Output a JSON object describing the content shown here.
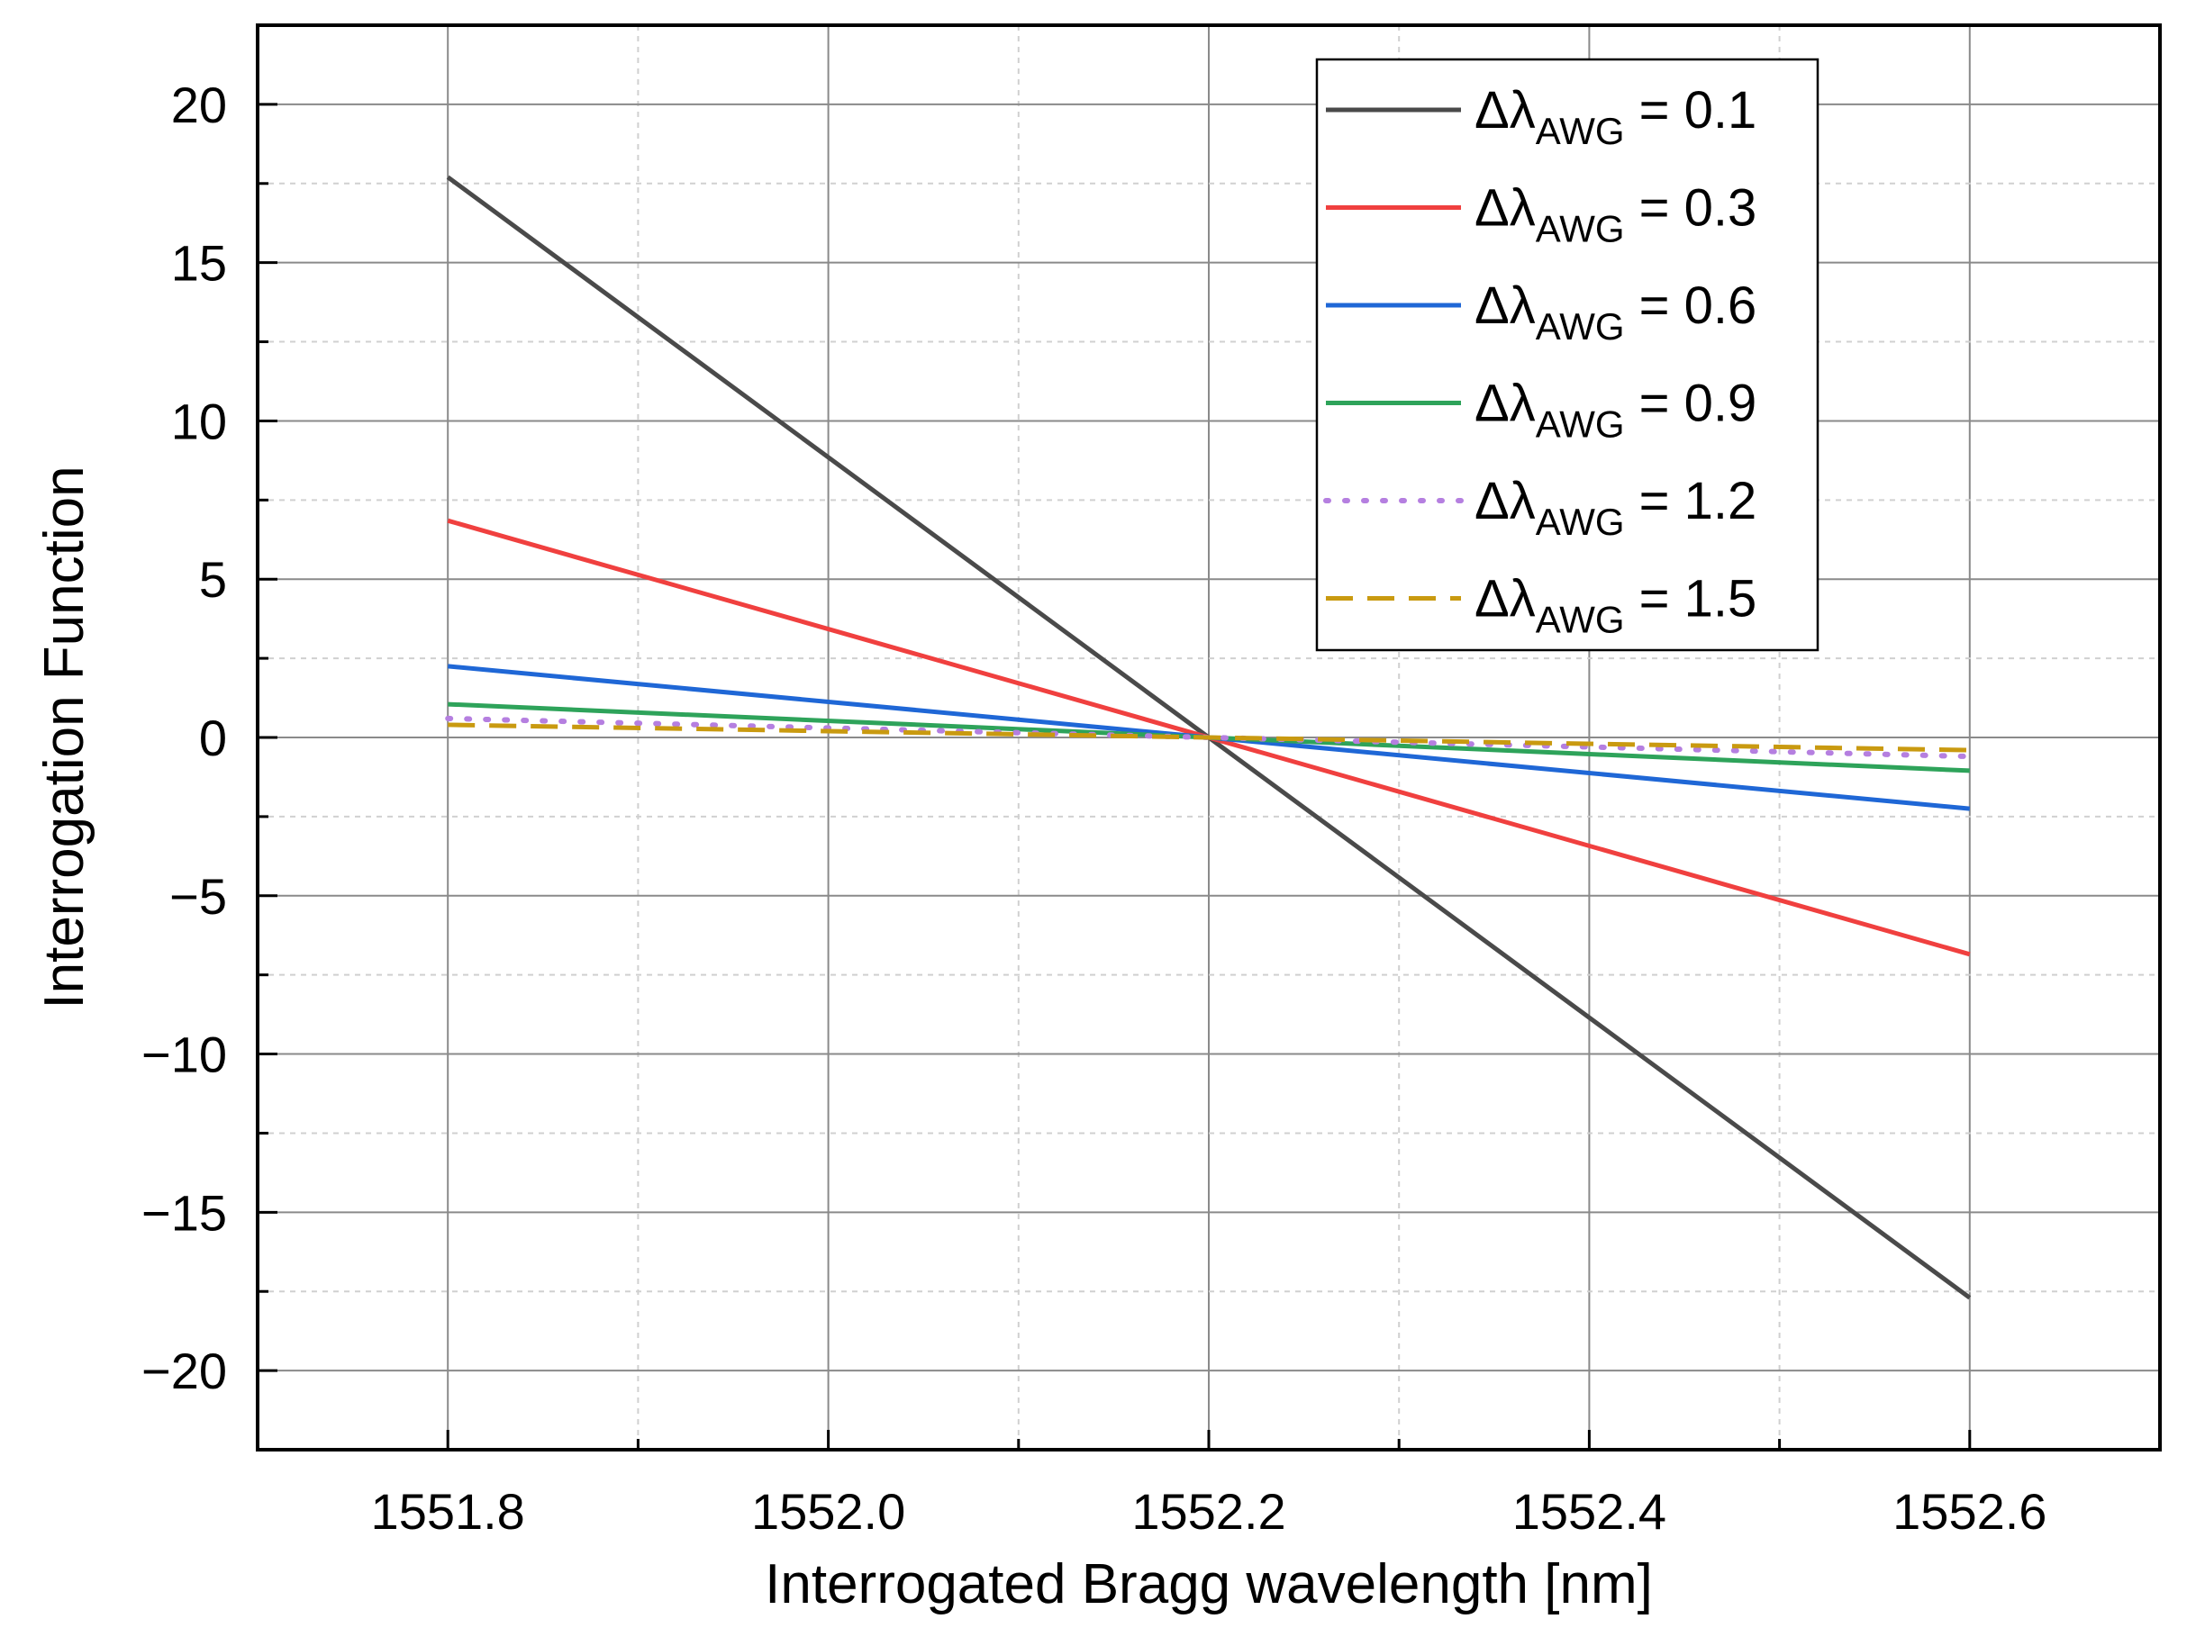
{
  "chart_data": {
    "type": "line",
    "title": "",
    "xlabel": "Interrogated Bragg wavelength [nm]",
    "ylabel": "Interrogation Function",
    "xlim": [
      1551.7,
      1552.7
    ],
    "ylim": [
      -22.5,
      22.5
    ],
    "xticks": [
      1551.8,
      1552.0,
      1552.2,
      1552.4,
      1552.6
    ],
    "xtick_labels": [
      "1551.8",
      "1552.0",
      "1552.2",
      "1552.4",
      "1552.6"
    ],
    "yticks": [
      -20,
      -15,
      -10,
      -5,
      0,
      5,
      10,
      15,
      20
    ],
    "ytick_labels": [
      "−20",
      "−15",
      "−10",
      "−5",
      "0",
      "5",
      "10",
      "15",
      "20"
    ],
    "grid": true,
    "legend_position": "top-right",
    "legend_symbol": "Δλ",
    "legend_subscript": "AWG",
    "x": [
      1551.8,
      1552.6
    ],
    "series": [
      {
        "name": "0.1",
        "label_suffix": "= 0.1",
        "values": [
          17.7,
          -17.7
        ],
        "color": "#4a4a4a",
        "style": "solid"
      },
      {
        "name": "0.3",
        "label_suffix": "= 0.3",
        "values": [
          6.85,
          -6.85
        ],
        "color": "#f0403f",
        "style": "solid"
      },
      {
        "name": "0.6",
        "label_suffix": "= 0.6",
        "values": [
          2.25,
          -2.25
        ],
        "color": "#1f67d6",
        "style": "solid"
      },
      {
        "name": "0.9",
        "label_suffix": "= 0.9",
        "values": [
          1.05,
          -1.05
        ],
        "color": "#2ea35a",
        "style": "solid"
      },
      {
        "name": "1.2",
        "label_suffix": "= 1.2",
        "values": [
          0.6,
          -0.6
        ],
        "color": "#b57fe0",
        "style": "dotted"
      },
      {
        "name": "1.5",
        "label_suffix": "= 1.5",
        "values": [
          0.4,
          -0.4
        ],
        "color": "#c99a10",
        "style": "dashed"
      }
    ]
  }
}
